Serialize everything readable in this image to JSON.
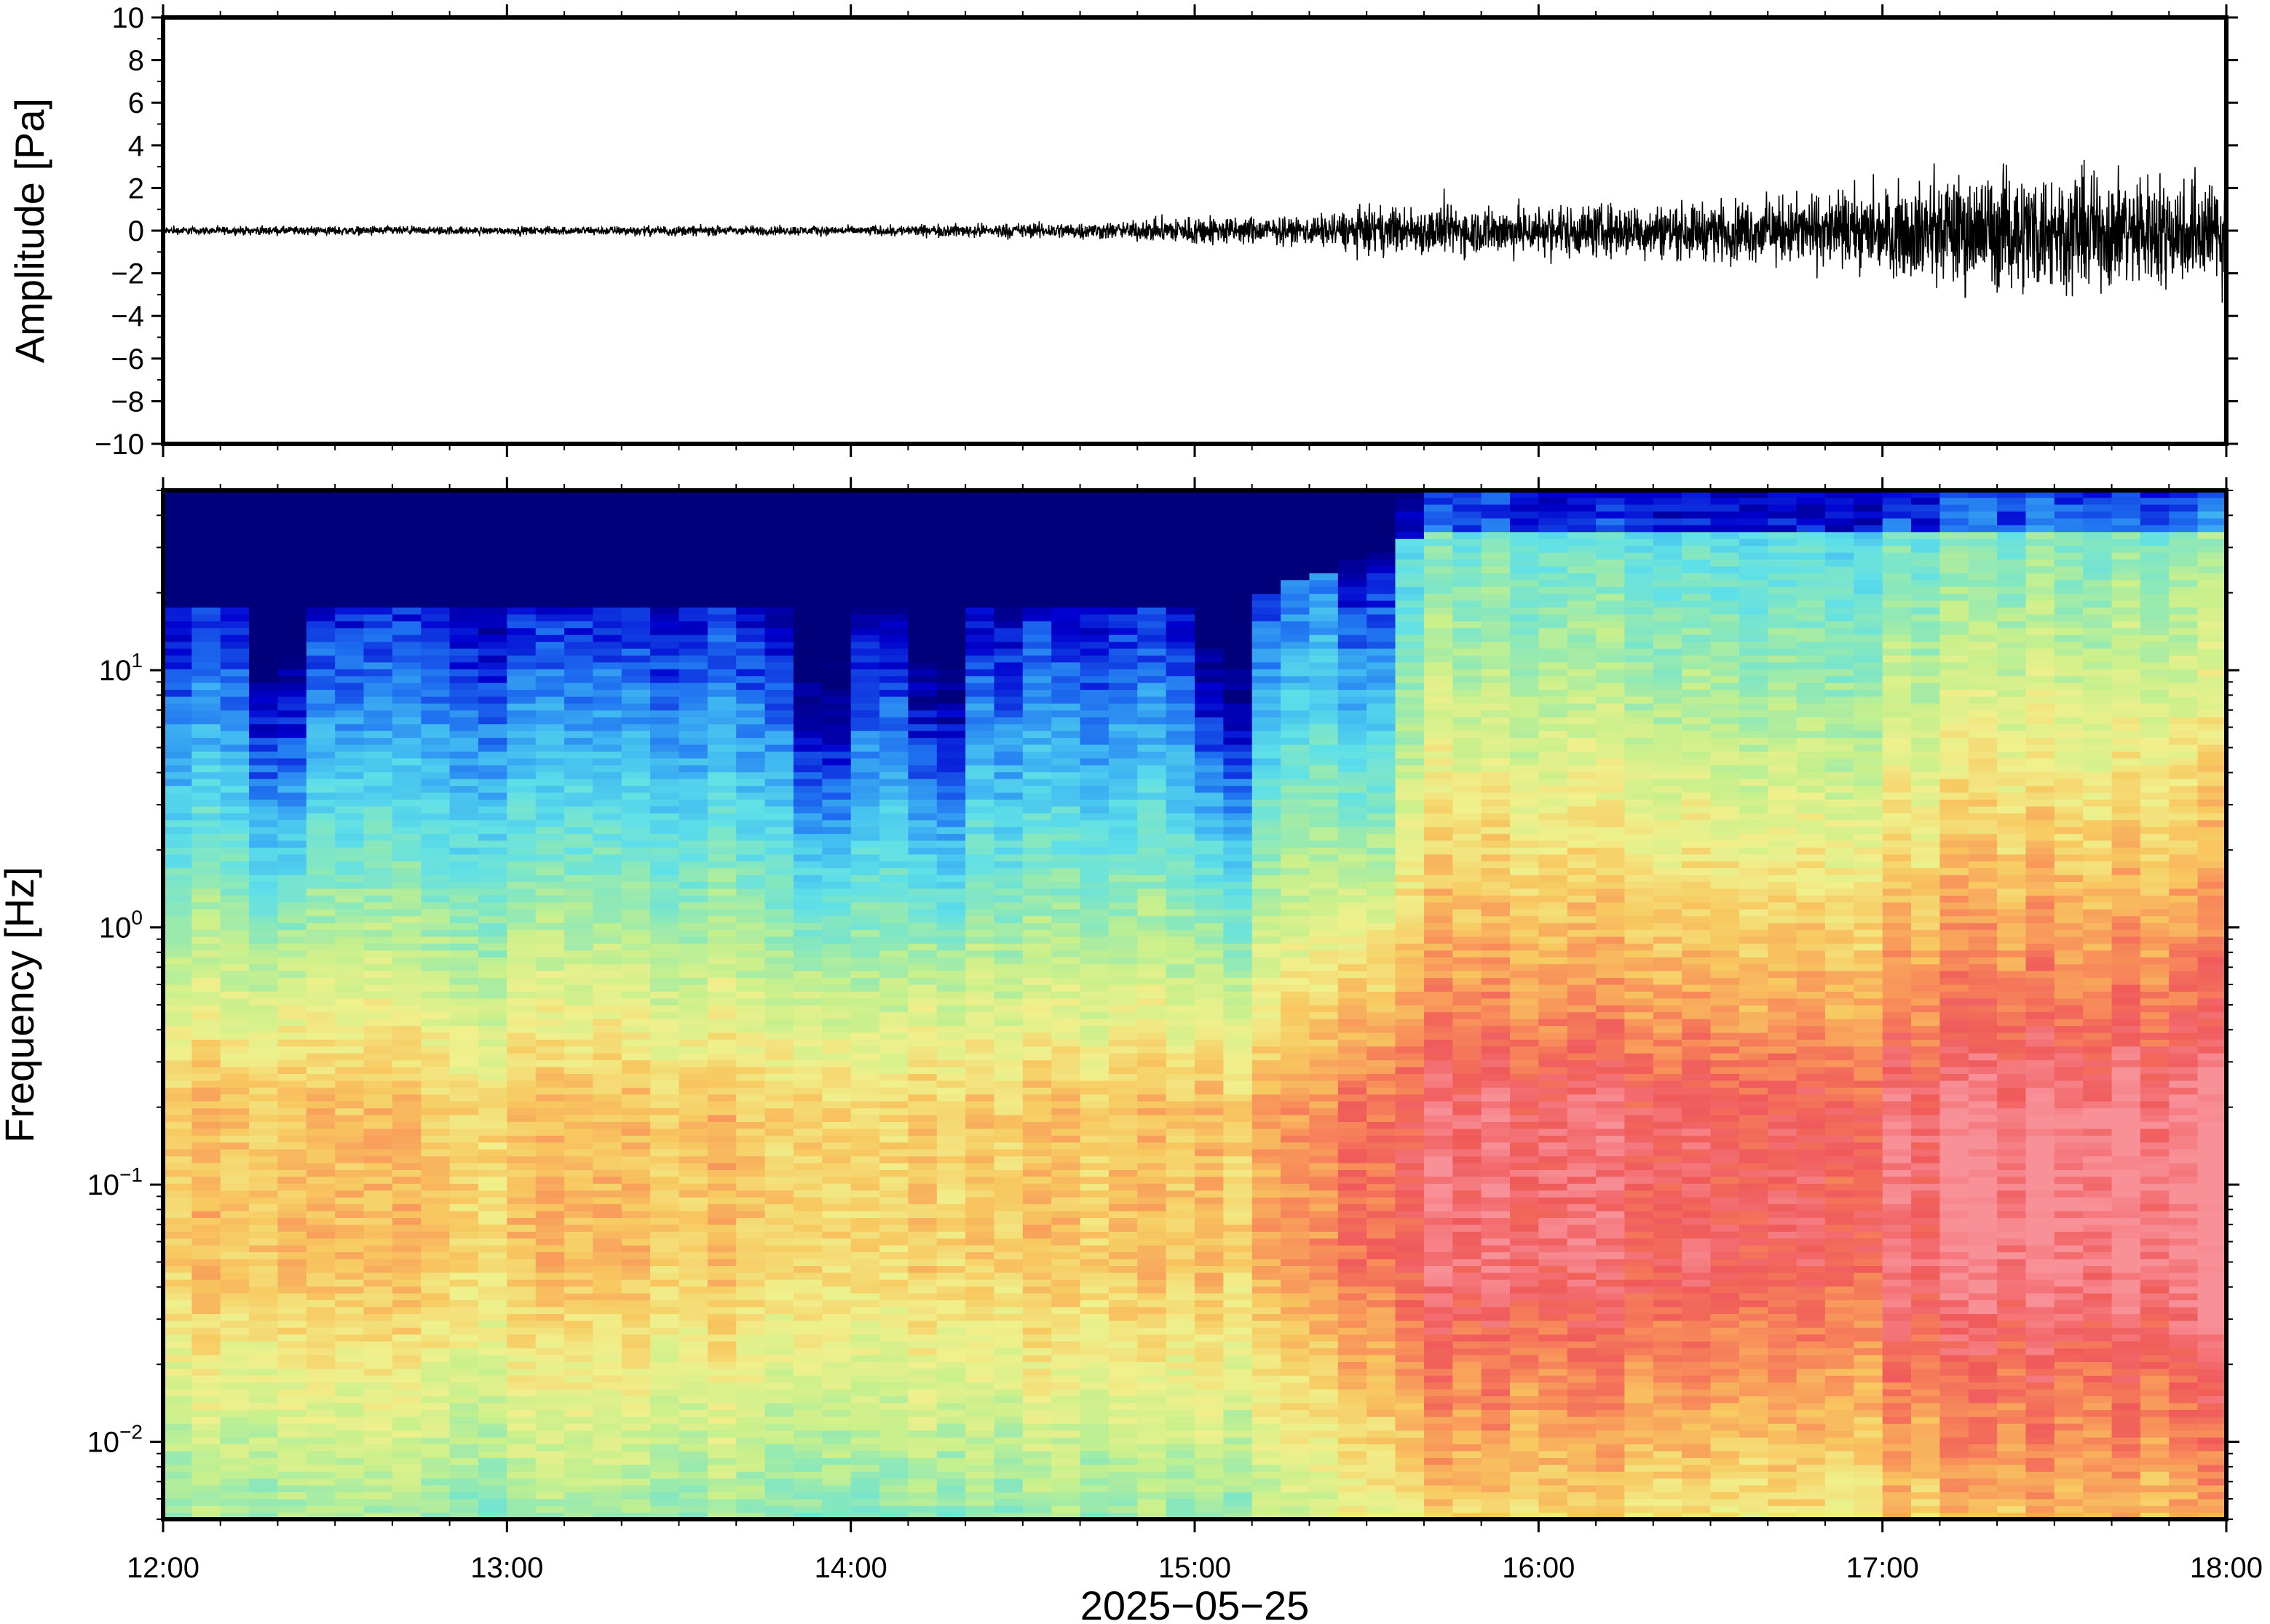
{
  "chart_data": [
    {
      "type": "line",
      "panel": "waveform",
      "ylabel": "Amplitude [Pa]",
      "ylim": [
        -10,
        10
      ],
      "yticks": [
        10,
        8,
        6,
        4,
        2,
        0,
        -2,
        -4,
        -6,
        -8,
        -10
      ],
      "ytick_labels": [
        "10",
        "8",
        "6",
        "4",
        "2",
        "0",
        "−2",
        "−4",
        "−6",
        "−8",
        "−10"
      ],
      "x_range": [
        "12:00",
        "18:00"
      ],
      "envelope": {
        "time_hours": [
          0.0,
          0.5,
          1.0,
          1.5,
          2.0,
          2.5,
          2.8,
          3.0,
          3.3,
          3.5,
          4.0,
          4.5,
          5.0,
          5.2,
          5.5,
          6.0
        ],
        "amplitude_pa": [
          0.15,
          0.18,
          0.15,
          0.2,
          0.18,
          0.3,
          0.35,
          0.6,
          0.5,
          0.9,
          1.0,
          1.1,
          1.6,
          2.2,
          2.4,
          2.0
        ]
      },
      "color": "#000000"
    },
    {
      "type": "heatmap",
      "panel": "spectrogram",
      "ylabel": "Frequency [Hz]",
      "yscale": "log",
      "ylim": [
        0.005,
        50
      ],
      "yticks": [
        0.01,
        0.1,
        1,
        10
      ],
      "ytick_labels": [
        {
          "base": "10",
          "exp": "−2"
        },
        {
          "base": "10",
          "exp": "−1"
        },
        {
          "base": "10",
          "exp": "0"
        },
        {
          "base": "10",
          "exp": "1"
        }
      ],
      "xticks": [
        "12:00",
        "13:00",
        "14:00",
        "15:00",
        "16:00",
        "17:00",
        "18:00"
      ],
      "xlabel": "2025−05−25",
      "colormap": [
        "#00007a",
        "#0000d0",
        "#1e6ef0",
        "#3fb6f2",
        "#5fe0e8",
        "#8ce8b8",
        "#c8f08c",
        "#f0f08c",
        "#f8c860",
        "#f8905a",
        "#f05a5a",
        "#f89098"
      ],
      "time_columns": 72
    }
  ]
}
